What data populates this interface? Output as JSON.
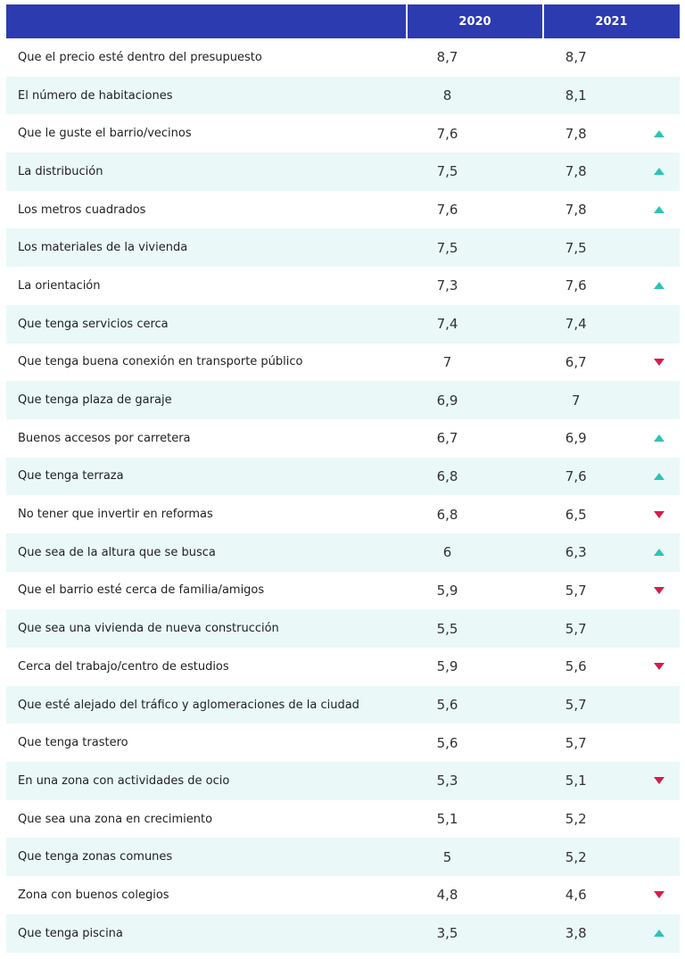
{
  "header": {
    "col_2020": "2020",
    "col_2021": "2021"
  },
  "colors": {
    "header_bg": "#2c3bb0",
    "row_alt": "#eaf8f8",
    "up": "#2fc2b8",
    "down": "#d61c4e"
  },
  "rows": [
    {
      "label": "Que el precio esté dentro del presupuesto",
      "v2020": "8,7",
      "v2021": "8,7",
      "trend": "none"
    },
    {
      "label": "El número de habitaciones",
      "v2020": "8",
      "v2021": "8,1",
      "trend": "none"
    },
    {
      "label": "Que le guste el barrio/vecinos",
      "v2020": "7,6",
      "v2021": "7,8",
      "trend": "up"
    },
    {
      "label": "La distribución",
      "v2020": "7,5",
      "v2021": "7,8",
      "trend": "up"
    },
    {
      "label": "Los metros cuadrados",
      "v2020": "7,6",
      "v2021": "7,8",
      "trend": "up"
    },
    {
      "label": "Los materiales de la vivienda",
      "v2020": "7,5",
      "v2021": "7,5",
      "trend": "none"
    },
    {
      "label": "La orientación",
      "v2020": "7,3",
      "v2021": "7,6",
      "trend": "up"
    },
    {
      "label": "Que tenga servicios cerca",
      "v2020": "7,4",
      "v2021": "7,4",
      "trend": "none"
    },
    {
      "label": "Que tenga buena conexión en transporte público",
      "v2020": "7",
      "v2021": "6,7",
      "trend": "down"
    },
    {
      "label": "Que tenga plaza de garaje",
      "v2020": "6,9",
      "v2021": "7",
      "trend": "none"
    },
    {
      "label": "Buenos accesos por carretera",
      "v2020": "6,7",
      "v2021": "6,9",
      "trend": "up"
    },
    {
      "label": "Que tenga terraza",
      "v2020": "6,8",
      "v2021": "7,6",
      "trend": "up"
    },
    {
      "label": "No tener que invertir en reformas",
      "v2020": "6,8",
      "v2021": "6,5",
      "trend": "down"
    },
    {
      "label": "Que sea de la altura que se busca",
      "v2020": "6",
      "v2021": "6,3",
      "trend": "up"
    },
    {
      "label": "Que el barrio esté cerca de familia/amigos",
      "v2020": "5,9",
      "v2021": "5,7",
      "trend": "down"
    },
    {
      "label": "Que sea una vivienda de nueva construcción",
      "v2020": "5,5",
      "v2021": "5,7",
      "trend": "none"
    },
    {
      "label": "Cerca del trabajo/centro de estudios",
      "v2020": "5,9",
      "v2021": "5,6",
      "trend": "down"
    },
    {
      "label": "Que esté alejado del tráfico y aglomeraciones de la ciudad",
      "v2020": "5,6",
      "v2021": "5,7",
      "trend": "none"
    },
    {
      "label": "Que tenga trastero",
      "v2020": "5,6",
      "v2021": "5,7",
      "trend": "none"
    },
    {
      "label": "En una zona con actividades de ocio",
      "v2020": "5,3",
      "v2021": "5,1",
      "trend": "down"
    },
    {
      "label": "Que sea una zona en crecimiento",
      "v2020": "5,1",
      "v2021": "5,2",
      "trend": "none"
    },
    {
      "label": "Que tenga zonas comunes",
      "v2020": "5",
      "v2021": "5,2",
      "trend": "none"
    },
    {
      "label": "Zona con buenos colegios",
      "v2020": "4,8",
      "v2021": "4,6",
      "trend": "down"
    },
    {
      "label": "Que tenga piscina",
      "v2020": "3,5",
      "v2021": "3,8",
      "trend": "up"
    }
  ]
}
